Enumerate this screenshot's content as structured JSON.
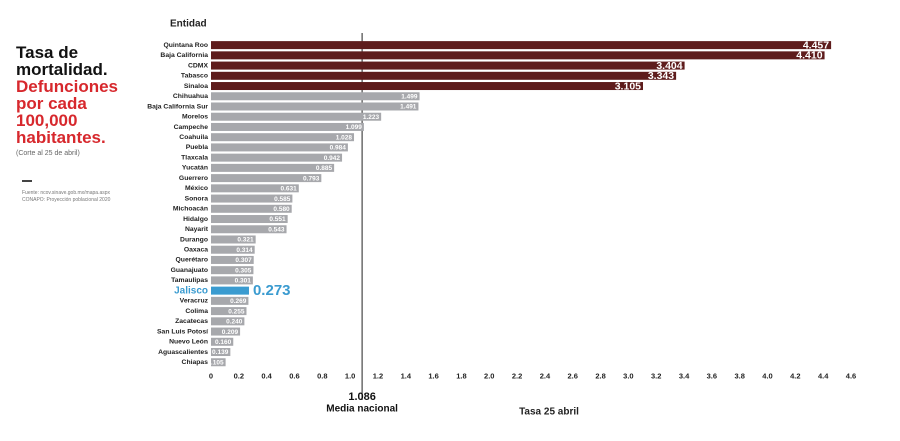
{
  "chart_data": {
    "type": "hbar",
    "title": "Tasa de mortalidad.",
    "subtitle": "Defunciones por cada 100,000 habitantes.",
    "note": "(Corte al 25 de abril)",
    "source": [
      "Fuente: ncov.sinave.gob.mx/mapa.aspx",
      "CONAPO: Proyección poblacional 2020"
    ],
    "category_axis_label": "Entidad",
    "x_axis_label": "Tasa 25 abril",
    "reference": {
      "value": 1.086,
      "label": "Media nacional"
    },
    "categories": [
      "Quintana Roo",
      "Baja California",
      "CDMX",
      "Tabasco",
      "Sinaloa",
      "Chihuahua",
      "Baja California Sur",
      "Morelos",
      "Campeche",
      "Coahuila",
      "Puebla",
      "Tlaxcala",
      "Yucatán",
      "Guerrero",
      "México",
      "Sonora",
      "Michoacán",
      "Hidalgo",
      "Nayarit",
      "Durango",
      "Oaxaca",
      "Querétaro",
      "Guanajuato",
      "Tamaulipas",
      "Jalisco",
      "Veracruz",
      "Colima",
      "Zacatecas",
      "San Luis Potosí",
      "Nuevo León",
      "Aguascalientes",
      "Chiapas"
    ],
    "values": [
      4.457,
      4.41,
      3.404,
      3.343,
      3.105,
      1.499,
      1.491,
      1.223,
      1.099,
      1.028,
      0.984,
      0.942,
      0.885,
      0.793,
      0.631,
      0.585,
      0.58,
      0.551,
      0.543,
      0.321,
      0.314,
      0.307,
      0.305,
      0.301,
      0.273,
      0.269,
      0.255,
      0.24,
      0.209,
      0.16,
      0.139,
      0.105
    ],
    "value_labels": [
      "4.457",
      "4.410",
      "3.404",
      "3.343",
      "3.105",
      "1.499",
      "1.491",
      "1.223",
      "1.099",
      "1.028",
      "0.984",
      "0.942",
      "0.885",
      "0.793",
      "0.631",
      "0.585",
      "0.580",
      "0.551",
      "0.543",
      "0.321",
      "0.314",
      "0.307",
      "0.305",
      "0.301",
      "0.273",
      "0.269",
      "0.255",
      "0.240",
      "0.209",
      "0.160",
      "0.139",
      "0.105"
    ],
    "colors": [
      "#5e1c1c",
      "#5e1c1c",
      "#5e1c1c",
      "#5e1c1c",
      "#5e1c1c",
      "#a7a8ac",
      "#a7a8ac",
      "#a7a8ac",
      "#a7a8ac",
      "#a7a8ac",
      "#a7a8ac",
      "#a7a8ac",
      "#a7a8ac",
      "#a7a8ac",
      "#a7a8ac",
      "#a7a8ac",
      "#a7a8ac",
      "#a7a8ac",
      "#a7a8ac",
      "#a7a8ac",
      "#a7a8ac",
      "#a7a8ac",
      "#a7a8ac",
      "#a7a8ac",
      "#3a9bd0",
      "#a7a8ac",
      "#a7a8ac",
      "#a7a8ac",
      "#a7a8ac",
      "#a7a8ac",
      "#a7a8ac",
      "#a7a8ac"
    ],
    "label_colors": [
      "#ffffff",
      "#ffffff",
      "#ffffff",
      "#ffffff",
      "#ffffff",
      "#ffffff",
      "#ffffff",
      "#ffffff",
      "#ffffff",
      "#ffffff",
      "#ffffff",
      "#ffffff",
      "#ffffff",
      "#ffffff",
      "#ffffff",
      "#ffffff",
      "#ffffff",
      "#ffffff",
      "#ffffff",
      "#ffffff",
      "#ffffff",
      "#ffffff",
      "#ffffff",
      "#ffffff",
      "#3a9bd0",
      "#ffffff",
      "#ffffff",
      "#ffffff",
      "#ffffff",
      "#ffffff",
      "#ffffff",
      "#ffffff"
    ],
    "xlim": [
      0,
      4.6
    ],
    "xticks": [
      0,
      0.2,
      0.4,
      0.6,
      0.8,
      {
        "value": 1,
        "label": "1.0"
      },
      1.2,
      1.4,
      1.6,
      1.8,
      {
        "value": 2,
        "label": "2.0"
      },
      2.2,
      2.4,
      2.6,
      2.8,
      {
        "value": 3,
        "label": "3.0"
      },
      3.2,
      3.4,
      3.6,
      3.8,
      {
        "value": 4,
        "label": "4.0"
      },
      4.2,
      4.4,
      4.6
    ],
    "grid": false
  }
}
